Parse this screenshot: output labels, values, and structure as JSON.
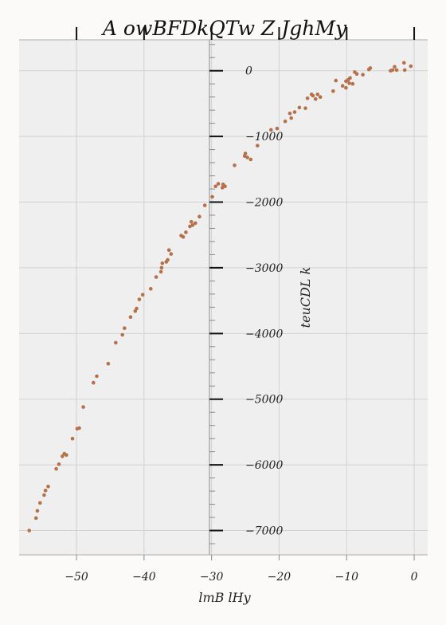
{
  "chart_data": {
    "type": "scatter",
    "title": "A  owBFDkQTw Z  JghMy",
    "xlabel": "lmB lHy",
    "ylabel": "teuCDL k",
    "xlim": [
      -58.5,
      2
    ],
    "ylim": [
      -7370,
      470
    ],
    "xticks": [
      -50,
      -40,
      -30,
      -20,
      -10,
      0
    ],
    "xtick_labels": [
      "−50",
      "−40",
      "−30",
      "−20",
      "−10",
      "0"
    ],
    "yticks": [
      0,
      -1000,
      -2000,
      -3000,
      -4000,
      -5000,
      -6000,
      -7000
    ],
    "ytick_labels": [
      "0",
      "−1000",
      "−2000",
      "−3000",
      "−4000",
      "−5000",
      "−6000",
      "−7000"
    ],
    "grid": true,
    "marker_color": "#b5714a",
    "background": "#efefef",
    "points": [
      [
        -57,
        -7000
      ],
      [
        -56,
        -6810
      ],
      [
        -55.8,
        -6700
      ],
      [
        -55.4,
        -6580
      ],
      [
        -54.8,
        -6460
      ],
      [
        -54.6,
        -6390
      ],
      [
        -54.2,
        -6330
      ],
      [
        -53,
        -6060
      ],
      [
        -52.6,
        -5990
      ],
      [
        -52.1,
        -5870
      ],
      [
        -51.8,
        -5830
      ],
      [
        -51.5,
        -5850
      ],
      [
        -50.6,
        -5600
      ],
      [
        -49.9,
        -5450
      ],
      [
        -49.6,
        -5440
      ],
      [
        -49,
        -5120
      ],
      [
        -47.5,
        -4750
      ],
      [
        -47,
        -4650
      ],
      [
        -45.3,
        -4460
      ],
      [
        -44.2,
        -4140
      ],
      [
        -43.2,
        -4020
      ],
      [
        -42.9,
        -3920
      ],
      [
        -42,
        -3750
      ],
      [
        -41.3,
        -3660
      ],
      [
        -41.1,
        -3620
      ],
      [
        -40.7,
        -3480
      ],
      [
        -40.2,
        -3410
      ],
      [
        -39,
        -3320
      ],
      [
        -38.2,
        -3140
      ],
      [
        -37.5,
        -3060
      ],
      [
        -37.4,
        -3000
      ],
      [
        -37.3,
        -2930
      ],
      [
        -36.7,
        -2910
      ],
      [
        -36.5,
        -2880
      ],
      [
        -36.3,
        -2730
      ],
      [
        -36,
        -2790
      ],
      [
        -34.5,
        -2510
      ],
      [
        -34.2,
        -2530
      ],
      [
        -33.8,
        -2460
      ],
      [
        -33.2,
        -2370
      ],
      [
        -33,
        -2300
      ],
      [
        -32.8,
        -2350
      ],
      [
        -32.4,
        -2320
      ],
      [
        -31.8,
        -2220
      ],
      [
        -31,
        -2050
      ],
      [
        -29.9,
        -1920
      ],
      [
        -29.4,
        -1760
      ],
      [
        -29,
        -1720
      ],
      [
        -28.4,
        -1780
      ],
      [
        -28.3,
        -1730
      ],
      [
        -28,
        -1760
      ],
      [
        -26.6,
        -1440
      ],
      [
        -25.1,
        -1300
      ],
      [
        -25,
        -1260
      ],
      [
        -24.7,
        -1320
      ],
      [
        -24.2,
        -1350
      ],
      [
        -23.2,
        -1140
      ],
      [
        -21.2,
        -900
      ],
      [
        -20.3,
        -880
      ],
      [
        -19.1,
        -770
      ],
      [
        -18.4,
        -650
      ],
      [
        -18.2,
        -720
      ],
      [
        -17.7,
        -630
      ],
      [
        -17,
        -560
      ],
      [
        -16.1,
        -570
      ],
      [
        -15.8,
        -420
      ],
      [
        -15.2,
        -360
      ],
      [
        -15,
        -380
      ],
      [
        -14.6,
        -430
      ],
      [
        -14.3,
        -360
      ],
      [
        -13.9,
        -400
      ],
      [
        -12,
        -310
      ],
      [
        -11.6,
        -150
      ],
      [
        -10.6,
        -230
      ],
      [
        -10.1,
        -260
      ],
      [
        -10.1,
        -160
      ],
      [
        -9.8,
        -140
      ],
      [
        -9.6,
        -190
      ],
      [
        -9.5,
        -110
      ],
      [
        -9.1,
        -200
      ],
      [
        -8.8,
        -20
      ],
      [
        -8.5,
        -50
      ],
      [
        -7.6,
        -60
      ],
      [
        -6.7,
        20
      ],
      [
        -6.5,
        40
      ],
      [
        -3.5,
        0
      ],
      [
        -3.2,
        10
      ],
      [
        -2.9,
        60
      ],
      [
        -2.6,
        10
      ],
      [
        -1.5,
        120
      ],
      [
        -1.4,
        10
      ],
      [
        -0.5,
        70
      ]
    ]
  }
}
